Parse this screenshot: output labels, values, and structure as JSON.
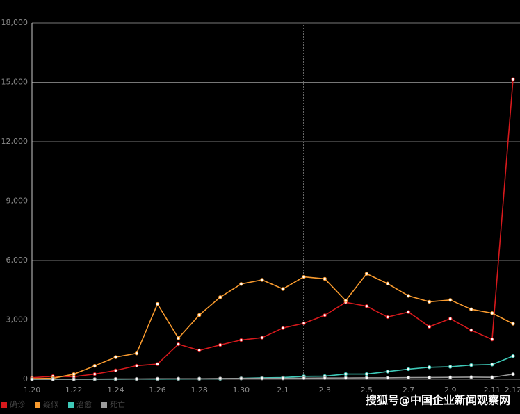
{
  "chart_data": {
    "type": "line",
    "categories": [
      "1.20",
      null,
      "1.22",
      null,
      "1.24",
      null,
      "1.26",
      null,
      "1.28",
      null,
      "1.30",
      null,
      "2.1",
      null,
      "2.3",
      null,
      "2.5",
      null,
      "2.7",
      null,
      "2.9",
      null,
      "2.11",
      "2.12"
    ],
    "series": [
      {
        "name": "确诊",
        "color": "#d7191c",
        "values": [
          77,
          149,
          131,
          259,
          444,
          688,
          769,
          1771,
          1459,
          1737,
          1982,
          2102,
          2590,
          2829,
          3235,
          3887,
          3694,
          3143,
          3399,
          2656,
          3062,
          2478,
          2015,
          15152
        ]
      },
      {
        "name": "疑似",
        "color": "#f89a2e",
        "values": [
          27,
          50,
          257,
          680,
          1118,
          1309,
          3806,
          2077,
          3248,
          4148,
          4812,
          5019,
          4562,
          5173,
          5072,
          3971,
          5328,
          4833,
          4214,
          3916,
          4008,
          3536,
          3342,
          2807
        ]
      },
      {
        "name": "治愈",
        "color": "#3ec9b8",
        "values": [
          0,
          0,
          0,
          0,
          0,
          9,
          5,
          15,
          23,
          21,
          47,
          72,
          85,
          147,
          157,
          262,
          261,
          387,
          510,
          605,
          632,
          716,
          744,
          1171
        ]
      },
      {
        "name": "死亡",
        "color": "#9a9a9a",
        "values": [
          0,
          0,
          0,
          8,
          16,
          15,
          24,
          26,
          26,
          38,
          43,
          46,
          45,
          57,
          64,
          66,
          73,
          73,
          86,
          89,
          97,
          108,
          97,
          254
        ]
      }
    ],
    "ylim": [
      0,
      18000
    ],
    "yticks": [
      0,
      {
        "value": 3000,
        "label": "3,000"
      },
      {
        "value": 6000,
        "label": "6,000"
      },
      {
        "value": 9000,
        "label": "9,000"
      },
      {
        "value": 12000,
        "label": "12,000"
      },
      {
        "value": 15000,
        "label": "15,000"
      },
      {
        "value": 18000,
        "label": "18,000"
      }
    ],
    "grid": true,
    "legend": "bottom-left",
    "watermark": "搜狐号@中国企业新闻观察网"
  }
}
